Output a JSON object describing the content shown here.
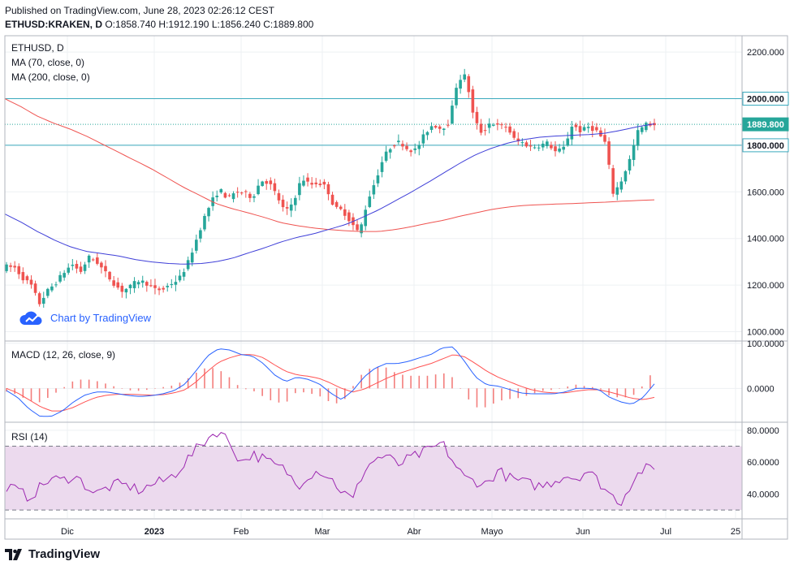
{
  "header": {
    "published": "Published on TradingView.com, June 28, 2023 02:26:12 CEST",
    "symbol": "ETHUSD:KRAKEN, D",
    "ohlc": {
      "o_label": "O:",
      "o": "1858.740",
      "h_label": "H:",
      "h": "1912.190",
      "l_label": "L:",
      "l": "1856.240",
      "c_label": "C:",
      "c": "1889.800"
    }
  },
  "legend": {
    "symbol": "ETHUSD, D",
    "ma70": "MA (70, close, 0)",
    "ma200": "MA (200, close, 0)",
    "macd": "MACD (12, 26, close, 9)",
    "rsi": "RSI (14)"
  },
  "watermark": "Chart by TradingView",
  "brand": "TradingView",
  "colors": {
    "up": "#26a69a",
    "down": "#ef5350",
    "ma70": "#3f3fd8",
    "ma200": "#ef5350",
    "macd": "#2962ff",
    "signal": "#ff5252",
    "rsi": "#9c27b0",
    "rsi_band": "#ecdaee",
    "hline": "#3aa9bd",
    "grid": "#eef0f3"
  },
  "chart_data": [
    {
      "type": "candlestick",
      "name": "ETHUSD",
      "x_ticks": [
        "Dic",
        "2023",
        "Feb",
        "Mar",
        "Abr",
        "Mayo",
        "Jun",
        "Jul",
        "25"
      ],
      "y_ticks": [
        "2200.000",
        "2000.000",
        "1800.000",
        "1600.000",
        "1400.000",
        "1200.000",
        "1000.000"
      ],
      "ylim": [
        960,
        2270
      ],
      "price_labels": [
        {
          "value": "2000.000",
          "type": "horizontal-line"
        },
        {
          "value": "1889.800",
          "type": "last-price"
        },
        {
          "value": "1800.000",
          "type": "horizontal-line"
        }
      ],
      "anchors": [
        1280,
        1275,
        1230,
        1200,
        1120,
        1175,
        1210,
        1255,
        1290,
        1255,
        1320,
        1300,
        1255,
        1210,
        1175,
        1190,
        1220,
        1210,
        1180,
        1180,
        1205,
        1225,
        1285,
        1380,
        1480,
        1560,
        1610,
        1570,
        1600,
        1595,
        1575,
        1650,
        1640,
        1580,
        1510,
        1560,
        1660,
        1630,
        1640,
        1620,
        1530,
        1520,
        1470,
        1420,
        1560,
        1650,
        1750,
        1800,
        1815,
        1780,
        1780,
        1850,
        1890,
        1870,
        1900,
        2080,
        2100,
        1910,
        1850,
        1900,
        1880,
        1880,
        1820,
        1810,
        1790,
        1800,
        1810,
        1770,
        1790,
        1890,
        1860,
        1880,
        1860,
        1810,
        1590,
        1650,
        1740,
        1860,
        1890,
        1890
      ],
      "ma70": [
        1505,
        1470,
        1430,
        1395,
        1365,
        1345,
        1335,
        1325,
        1310,
        1300,
        1293,
        1290,
        1292,
        1300,
        1315,
        1338,
        1360,
        1385,
        1405,
        1420,
        1440,
        1460,
        1490,
        1522,
        1560,
        1598,
        1638,
        1680,
        1722,
        1760,
        1788,
        1810,
        1825,
        1835,
        1840,
        1843,
        1846,
        1852,
        1865,
        1880,
        1892
      ],
      "ma200": [
        2000,
        1965,
        1925,
        1895,
        1870,
        1840,
        1805,
        1770,
        1735,
        1700,
        1660,
        1620,
        1585,
        1550,
        1528,
        1510,
        1490,
        1468,
        1455,
        1445,
        1438,
        1433,
        1430,
        1430,
        1438,
        1450,
        1465,
        1478,
        1495,
        1510,
        1525,
        1535,
        1542,
        1545,
        1548,
        1550,
        1553,
        1556,
        1560,
        1563,
        1566
      ]
    },
    {
      "type": "line",
      "name": "MACD",
      "y_ticks": [
        "100.0000",
        "0.0000"
      ],
      "ylim": [
        -75,
        105
      ],
      "macd": [
        -5,
        -20,
        -45,
        -62,
        -62,
        -50,
        -30,
        -15,
        -8,
        -8,
        -12,
        -16,
        -18,
        -16,
        -12,
        -5,
        10,
        40,
        72,
        88,
        85,
        75,
        72,
        55,
        30,
        15,
        25,
        20,
        10,
        -10,
        -25,
        -5,
        25,
        45,
        55,
        55,
        60,
        68,
        75,
        90,
        92,
        60,
        25,
        8,
        5,
        -2,
        -10,
        -12,
        -12,
        -12,
        -8,
        0,
        0,
        -2,
        -20,
        -30,
        -35,
        -20,
        10
      ],
      "signal": [
        0,
        -10,
        -25,
        -40,
        -50,
        -50,
        -42,
        -30,
        -20,
        -15,
        -13,
        -13,
        -14,
        -15,
        -14,
        -10,
        -3,
        15,
        38,
        58,
        68,
        75,
        75,
        68,
        52,
        38,
        30,
        27,
        22,
        12,
        0,
        -8,
        -2,
        10,
        22,
        32,
        40,
        48,
        55,
        65,
        75,
        70,
        55,
        38,
        25,
        15,
        5,
        -3,
        -8,
        -10,
        -10,
        -6,
        -3,
        -3,
        -8,
        -15,
        -22,
        -25,
        -20
      ]
    },
    {
      "type": "line",
      "name": "RSI",
      "y_ticks": [
        "80.0000",
        "60.0000",
        "40.0000"
      ],
      "ylim": [
        25,
        85
      ],
      "bands": [
        30,
        70
      ],
      "rsi": [
        45,
        42,
        38,
        44,
        50,
        48,
        52,
        46,
        40,
        44,
        46,
        45,
        42,
        46,
        48,
        52,
        60,
        68,
        75,
        80,
        72,
        60,
        65,
        62,
        58,
        55,
        45,
        52,
        55,
        50,
        42,
        36,
        55,
        62,
        64,
        58,
        62,
        65,
        68,
        72,
        60,
        50,
        48,
        46,
        55,
        50,
        48,
        46,
        45,
        48,
        52,
        50,
        55,
        48,
        40,
        35,
        48,
        56,
        55
      ]
    }
  ]
}
